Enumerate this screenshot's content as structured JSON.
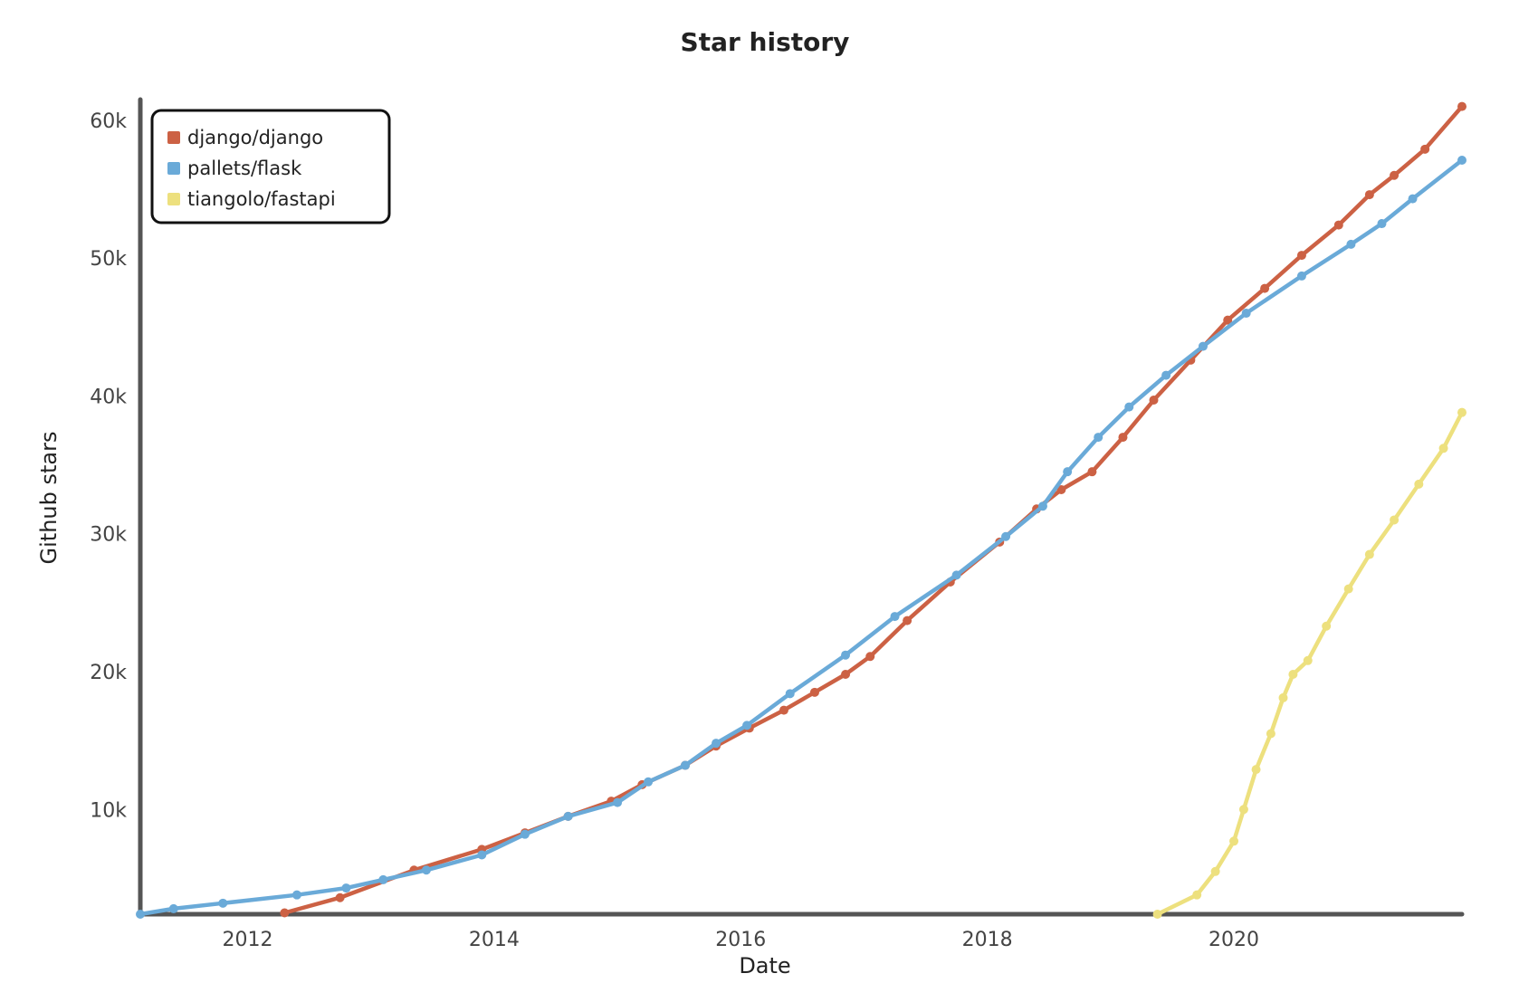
{
  "chart_data": {
    "type": "line",
    "title": "Star history",
    "xlabel": "Date",
    "ylabel": "Github stars",
    "x_ticks": [
      "2012",
      "2014",
      "2016",
      "2018",
      "2020"
    ],
    "x_tick_values": [
      2012,
      2014,
      2016,
      2018,
      2020
    ],
    "y_ticks": [
      "10k",
      "20k",
      "30k",
      "40k",
      "50k",
      "60k"
    ],
    "y_tick_values": [
      10000,
      20000,
      30000,
      40000,
      50000,
      60000
    ],
    "xlim": [
      2011.13,
      2021.85
    ],
    "ylim": [
      2400,
      61500
    ],
    "grid": false,
    "legend_position": "top-left",
    "series": [
      {
        "name": "django/django",
        "color": "#cc6144",
        "x": [
          2012.3,
          2012.75,
          2013.35,
          2013.9,
          2014.25,
          2014.6,
          2014.95,
          2015.2,
          2015.55,
          2015.8,
          2016.07,
          2016.35,
          2016.6,
          2016.85,
          2017.05,
          2017.35,
          2017.7,
          2018.1,
          2018.4,
          2018.6,
          2018.85,
          2019.1,
          2019.35,
          2019.65,
          2019.95,
          2020.25,
          2020.55,
          2020.85,
          2021.1,
          2021.3,
          2021.55,
          2021.85
        ],
        "y": [
          2500,
          3600,
          5600,
          7100,
          8300,
          9500,
          10600,
          11800,
          13200,
          14600,
          15900,
          17200,
          18500,
          19800,
          21100,
          23700,
          26500,
          29400,
          31800,
          33200,
          34500,
          37000,
          39700,
          42600,
          45500,
          47800,
          50200,
          52400,
          54600,
          56000,
          57900,
          61000
        ]
      },
      {
        "name": "pallets/flask",
        "color": "#6aaad8",
        "x": [
          2011.13,
          2011.4,
          2011.8,
          2012.4,
          2012.8,
          2013.1,
          2013.45,
          2013.9,
          2014.25,
          2014.6,
          2015.0,
          2015.25,
          2015.55,
          2015.8,
          2016.05,
          2016.4,
          2016.85,
          2017.25,
          2017.75,
          2018.15,
          2018.45,
          2018.65,
          2018.9,
          2019.15,
          2019.45,
          2019.75,
          2020.1,
          2020.55,
          2020.95,
          2021.2,
          2021.45,
          2021.85
        ],
        "y": [
          2400,
          2800,
          3200,
          3800,
          4300,
          4900,
          5600,
          6700,
          8200,
          9500,
          10500,
          12000,
          13200,
          14800,
          16100,
          18400,
          21200,
          24000,
          27000,
          29800,
          32000,
          34500,
          37000,
          39200,
          41500,
          43600,
          46000,
          48700,
          51000,
          52500,
          54300,
          57100
        ]
      },
      {
        "name": "tiangolo/fastapi",
        "color": "#ede07e",
        "x": [
          2019.38,
          2019.7,
          2019.85,
          2020.0,
          2020.08,
          2020.18,
          2020.3,
          2020.4,
          2020.48,
          2020.6,
          2020.75,
          2020.93,
          2021.1,
          2021.3,
          2021.5,
          2021.7,
          2021.85
        ],
        "y": [
          2400,
          3800,
          5500,
          7700,
          10000,
          12900,
          15500,
          18100,
          19800,
          20800,
          23300,
          26000,
          28500,
          31000,
          33600,
          36200,
          38800
        ]
      }
    ]
  }
}
